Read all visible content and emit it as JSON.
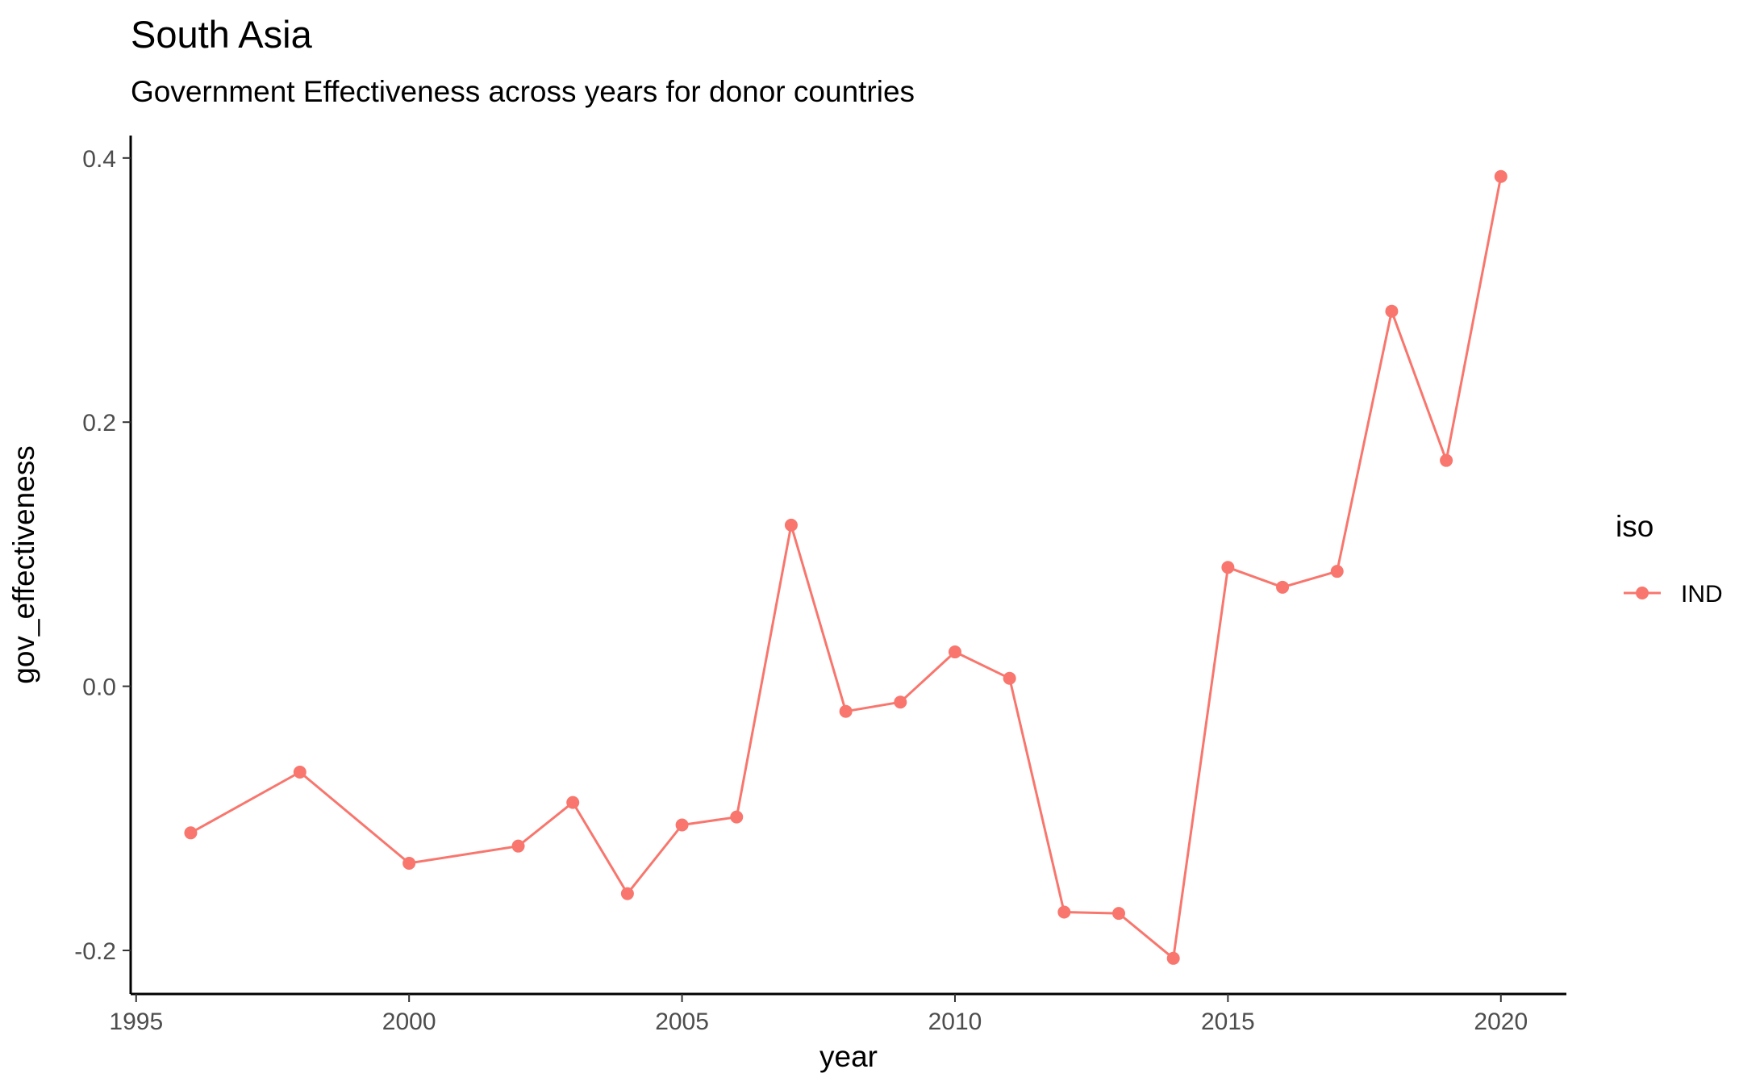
{
  "chart_data": {
    "type": "line",
    "title": "South Asia",
    "subtitle": "Government Effectiveness across years for donor countries",
    "xlabel": "year",
    "ylabel": "gov_effectiveness",
    "xlim": [
      1994.9,
      2021.2
    ],
    "ylim": [
      -0.233,
      0.417
    ],
    "x_ticks": [
      1995,
      2000,
      2005,
      2010,
      2015,
      2020
    ],
    "x_tick_labels": [
      "1995",
      "2000",
      "2005",
      "2010",
      "2015",
      "2020"
    ],
    "y_ticks": [
      -0.2,
      0.0,
      0.2,
      0.4
    ],
    "y_tick_labels": [
      "-0.2",
      "0.0",
      "0.2",
      "0.4"
    ],
    "grid": false,
    "legend": {
      "title": "iso",
      "position": "right",
      "entries": [
        "IND"
      ]
    },
    "series": [
      {
        "name": "IND",
        "color": "#F8766D",
        "x": [
          1996,
          1998,
          2000,
          2002,
          2003,
          2004,
          2005,
          2006,
          2007,
          2008,
          2009,
          2010,
          2011,
          2012,
          2013,
          2014,
          2015,
          2016,
          2017,
          2018,
          2019,
          2020
        ],
        "y": [
          -0.111,
          -0.065,
          -0.134,
          -0.121,
          -0.088,
          -0.157,
          -0.105,
          -0.099,
          0.122,
          -0.019,
          -0.012,
          0.026,
          0.006,
          -0.171,
          -0.172,
          -0.206,
          0.09,
          0.075,
          0.087,
          0.284,
          0.171,
          0.386
        ]
      }
    ]
  }
}
